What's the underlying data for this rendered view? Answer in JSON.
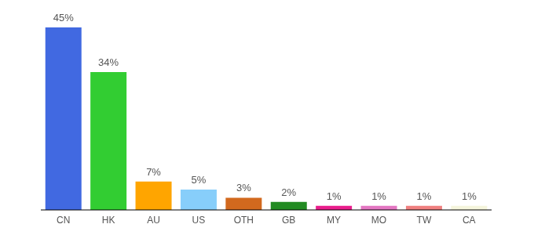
{
  "chart_data": {
    "type": "bar",
    "categories": [
      "CN",
      "HK",
      "AU",
      "US",
      "OTH",
      "GB",
      "MY",
      "MO",
      "TW",
      "CA"
    ],
    "values": [
      45,
      34,
      7,
      5,
      3,
      2,
      1,
      1,
      1,
      1
    ],
    "value_labels": [
      "45%",
      "34%",
      "7%",
      "5%",
      "3%",
      "2%",
      "1%",
      "1%",
      "1%",
      "1%"
    ],
    "colors": [
      "#4169e1",
      "#32cd32",
      "#ffa500",
      "#87cefa",
      "#d2691e",
      "#228b22",
      "#e91e8c",
      "#e377c2",
      "#f08080",
      "#f5f5dc"
    ],
    "ylim": [
      0,
      45
    ],
    "data_labels": true,
    "tick_labels": "x",
    "grid": false
  }
}
